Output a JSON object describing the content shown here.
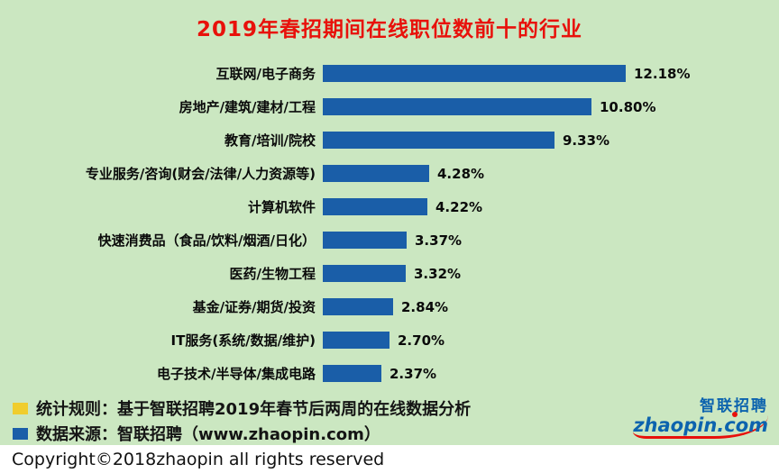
{
  "title": "2019年春招期间在线职位数前十的行业",
  "chart_data": {
    "type": "bar",
    "orientation": "horizontal",
    "title": "2019年春招期间在线职位数前十的行业",
    "categories": [
      "互联网/电子商务",
      "房地产/建筑/建材/工程",
      "教育/培训/院校",
      "专业服务/咨询(财会/法律/人力资源等)",
      "计算机软件",
      "快速消费品（食品/饮料/烟酒/日化）",
      "医药/生物工程",
      "基金/证券/期货/投资",
      "IT服务(系统/数据/维护)",
      "电子技术/半导体/集成电路"
    ],
    "values": [
      12.18,
      10.8,
      9.33,
      4.28,
      4.22,
      3.37,
      3.32,
      2.84,
      2.7,
      2.37
    ],
    "value_labels": [
      "12.18%",
      "10.80%",
      "9.33%",
      "4.28%",
      "4.22%",
      "3.37%",
      "3.32%",
      "2.84%",
      "2.70%",
      "2.37%"
    ],
    "bar_color": "#1a5ea8",
    "xlim": [
      0,
      13
    ],
    "grid": false,
    "legend_position": "none"
  },
  "legend": {
    "items": [
      {
        "color": "#f0cd2e",
        "text": "统计规则：基于智联招聘2019年春节后两周的在线数据分析"
      },
      {
        "color": "#1a5ea8",
        "text": "数据来源：智联招聘（www.zhaopin.com）"
      }
    ]
  },
  "logo": {
    "name_cn": "智联招聘",
    "domain": "zhaopin.com"
  },
  "footer": {
    "copyright": "Copyright©2018zhaopin all rights reserved"
  },
  "colors": {
    "background": "#cbe7c1",
    "title": "#e8110b",
    "bar": "#1a5ea8",
    "legend_yellow": "#f0cd2e",
    "legend_blue": "#1a5ea8",
    "logo_blue": "#0c63ae",
    "logo_red": "#e8110b"
  }
}
